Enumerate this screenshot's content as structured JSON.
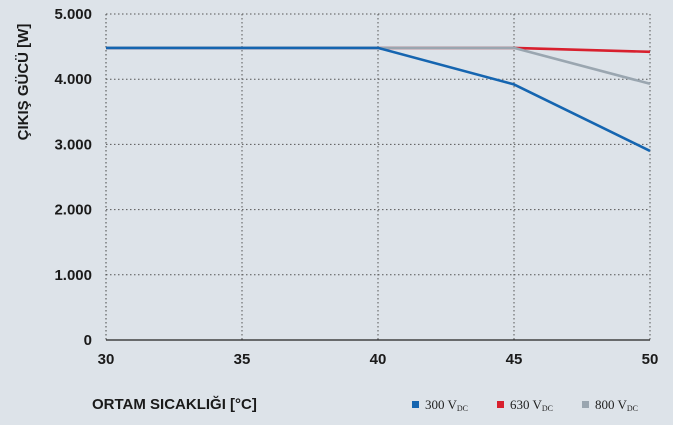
{
  "chart_data": {
    "type": "line",
    "xlabel": "ORTAM SICAKLIĞI [°C]",
    "ylabel": "ÇIKIŞ GÜCÜ [W]",
    "x_ticks": [
      "30",
      "35",
      "40",
      "45",
      "50"
    ],
    "y_ticks": [
      "0",
      "1.000",
      "2.000",
      "3.000",
      "4.000",
      "5.000"
    ],
    "xlim": [
      30,
      50
    ],
    "ylim": [
      0,
      5000
    ],
    "grid": true,
    "legend_position": "bottom-right",
    "series": [
      {
        "name": "300 V",
        "name_sub": "DC",
        "color": "#1565b0",
        "x": [
          30,
          40,
          45,
          50
        ],
        "y": [
          4480,
          4480,
          3920,
          2900
        ]
      },
      {
        "name": "630 V",
        "name_sub": "DC",
        "color": "#d8202e",
        "x": [
          30,
          45,
          50
        ],
        "y": [
          4480,
          4480,
          4420
        ]
      },
      {
        "name": "800 V",
        "name_sub": "DC",
        "color": "#9aa6b0",
        "x": [
          30,
          40,
          45,
          50
        ],
        "y": [
          4480,
          4480,
          4480,
          3930
        ]
      }
    ]
  }
}
